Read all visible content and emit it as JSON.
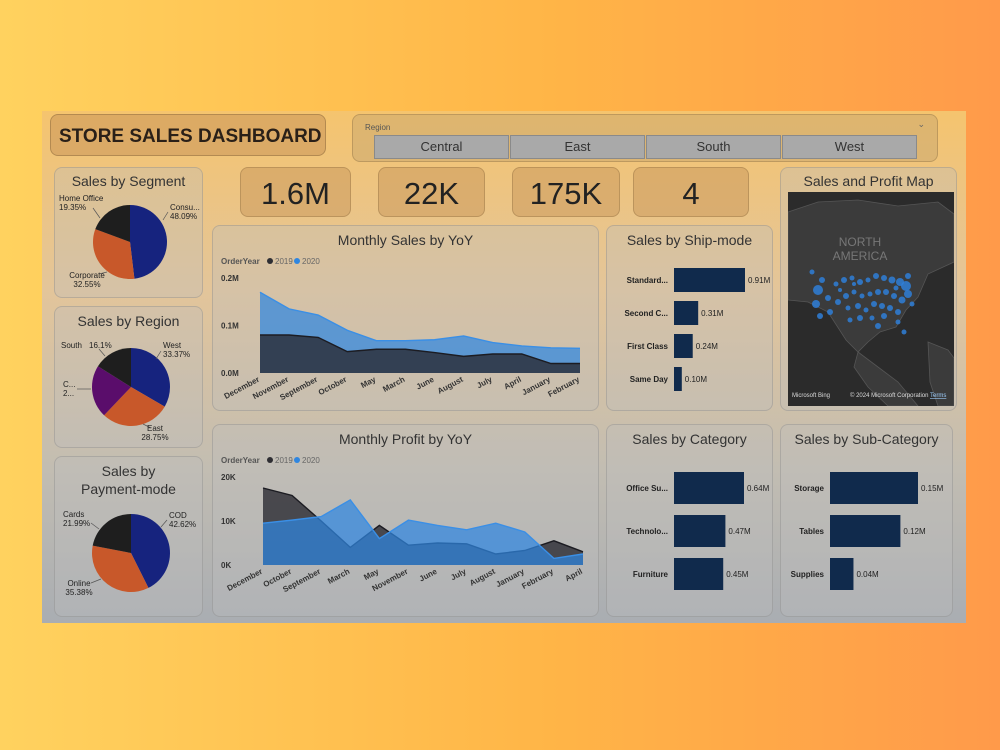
{
  "header": {
    "title": "STORE SALES DASHBOARD"
  },
  "slicer": {
    "label": "Region",
    "options": [
      "Central",
      "East",
      "South",
      "West"
    ]
  },
  "kpis": [
    "1.6M",
    "22K",
    "175K",
    "4"
  ],
  "colors": {
    "navy": "#16237e",
    "orange": "#c8582a",
    "dark": "#1e1e1e",
    "purple": "#5a0d6b",
    "bar": "#102a4c",
    "blue": "#2f86e0",
    "dark_series": "#2e2e33"
  },
  "legend": {
    "field": "OrderYear",
    "y2019": "2019",
    "y2020": "2020"
  },
  "map": {
    "title": "Sales and Profit Map",
    "continent_line1": "NORTH",
    "continent_line2": "AMERICA",
    "attribution": "© 2024 Microsoft Corporation",
    "brand": "Microsoft Bing",
    "terms": "Terms"
  },
  "chart_data": [
    {
      "id": "segment",
      "type": "pie",
      "title": "Sales by Segment",
      "slices": [
        {
          "name": "Consu...",
          "label": "48.09%",
          "value": 48.09,
          "color": "#16237e"
        },
        {
          "name": "Corporate",
          "label": "32.55%",
          "value": 32.55,
          "color": "#c8582a"
        },
        {
          "name": "Home Office",
          "label": "19.35%",
          "value": 19.35,
          "color": "#1e1e1e"
        }
      ]
    },
    {
      "id": "region",
      "type": "pie",
      "title": "Sales by Region",
      "slices": [
        {
          "name": "West",
          "label": "33.37%",
          "value": 33.37,
          "color": "#16237e"
        },
        {
          "name": "East",
          "label": "28.75%",
          "value": 28.75,
          "color": "#c8582a"
        },
        {
          "name": "C...",
          "label": "2...",
          "value": 21.79,
          "color": "#5a0d6b"
        },
        {
          "name": "South",
          "label": "16.1%",
          "value": 16.1,
          "color": "#1e1e1e"
        }
      ]
    },
    {
      "id": "payment",
      "type": "pie",
      "title": "Sales by Payment-mode",
      "title_line1": "Sales by",
      "title_line2": "Payment-mode",
      "slices": [
        {
          "name": "COD",
          "label": "42.62%",
          "value": 42.62,
          "color": "#16237e"
        },
        {
          "name": "Online",
          "label": "35.38%",
          "value": 35.38,
          "color": "#c8582a"
        },
        {
          "name": "Cards",
          "label": "21.99%",
          "value": 21.99,
          "color": "#1e1e1e"
        }
      ]
    },
    {
      "id": "monthly_sales",
      "type": "area",
      "title": "Monthly Sales by YoY",
      "categories": [
        "December",
        "November",
        "September",
        "October",
        "May",
        "March",
        "June",
        "August",
        "July",
        "April",
        "January",
        "February"
      ],
      "yticks": [
        "0.2M",
        "0.1M",
        "0.0M"
      ],
      "ylim": [
        0,
        0.2
      ],
      "series": [
        {
          "name": "2019",
          "values": [
            0.08,
            0.08,
            0.075,
            0.045,
            0.05,
            0.05,
            0.043,
            0.035,
            0.04,
            0.04,
            0.02,
            0.02
          ]
        },
        {
          "name": "2020",
          "values": [
            0.17,
            0.135,
            0.122,
            0.09,
            0.068,
            0.068,
            0.07,
            0.078,
            0.064,
            0.057,
            0.053,
            0.052
          ]
        }
      ]
    },
    {
      "id": "monthly_profit",
      "type": "area",
      "title": "Monthly Profit by YoY",
      "categories": [
        "December",
        "October",
        "September",
        "March",
        "May",
        "November",
        "June",
        "July",
        "August",
        "January",
        "February",
        "April"
      ],
      "yticks": [
        "20K",
        "10K",
        "0K"
      ],
      "ylim": [
        0,
        20000
      ],
      "series": [
        {
          "name": "2019",
          "values": [
            17500,
            15800,
            10000,
            4000,
            9000,
            4500,
            5000,
            4800,
            2500,
            3300,
            5500,
            3000
          ]
        },
        {
          "name": "2020",
          "values": [
            9500,
            10200,
            11000,
            14800,
            6000,
            10200,
            9000,
            8000,
            9500,
            7500,
            1500,
            2500
          ]
        }
      ]
    },
    {
      "id": "ship_mode",
      "type": "bar",
      "orientation": "horizontal",
      "title": "Sales by Ship-mode",
      "categories": [
        "Standard...",
        "Second C...",
        "First Class",
        "Same Day"
      ],
      "values": [
        0.91,
        0.31,
        0.24,
        0.1
      ],
      "labels": [
        "0.91M",
        "0.31M",
        "0.24M",
        "0.10M"
      ],
      "xlim": [
        0,
        0.91
      ]
    },
    {
      "id": "category",
      "type": "bar",
      "orientation": "horizontal",
      "title": "Sales by Category",
      "categories": [
        "Office Su...",
        "Technolo...",
        "Furniture"
      ],
      "values": [
        0.64,
        0.47,
        0.45
      ],
      "labels": [
        "0.64M",
        "0.47M",
        "0.45M"
      ],
      "xlim": [
        0,
        0.64
      ]
    },
    {
      "id": "sub_category",
      "type": "bar",
      "orientation": "horizontal",
      "title": "Sales by Sub-Category",
      "categories": [
        "Storage",
        "Tables",
        "Supplies"
      ],
      "values": [
        0.15,
        0.12,
        0.04
      ],
      "labels": [
        "0.15M",
        "0.12M",
        "0.04M"
      ],
      "xlim": [
        0,
        0.15
      ]
    }
  ]
}
